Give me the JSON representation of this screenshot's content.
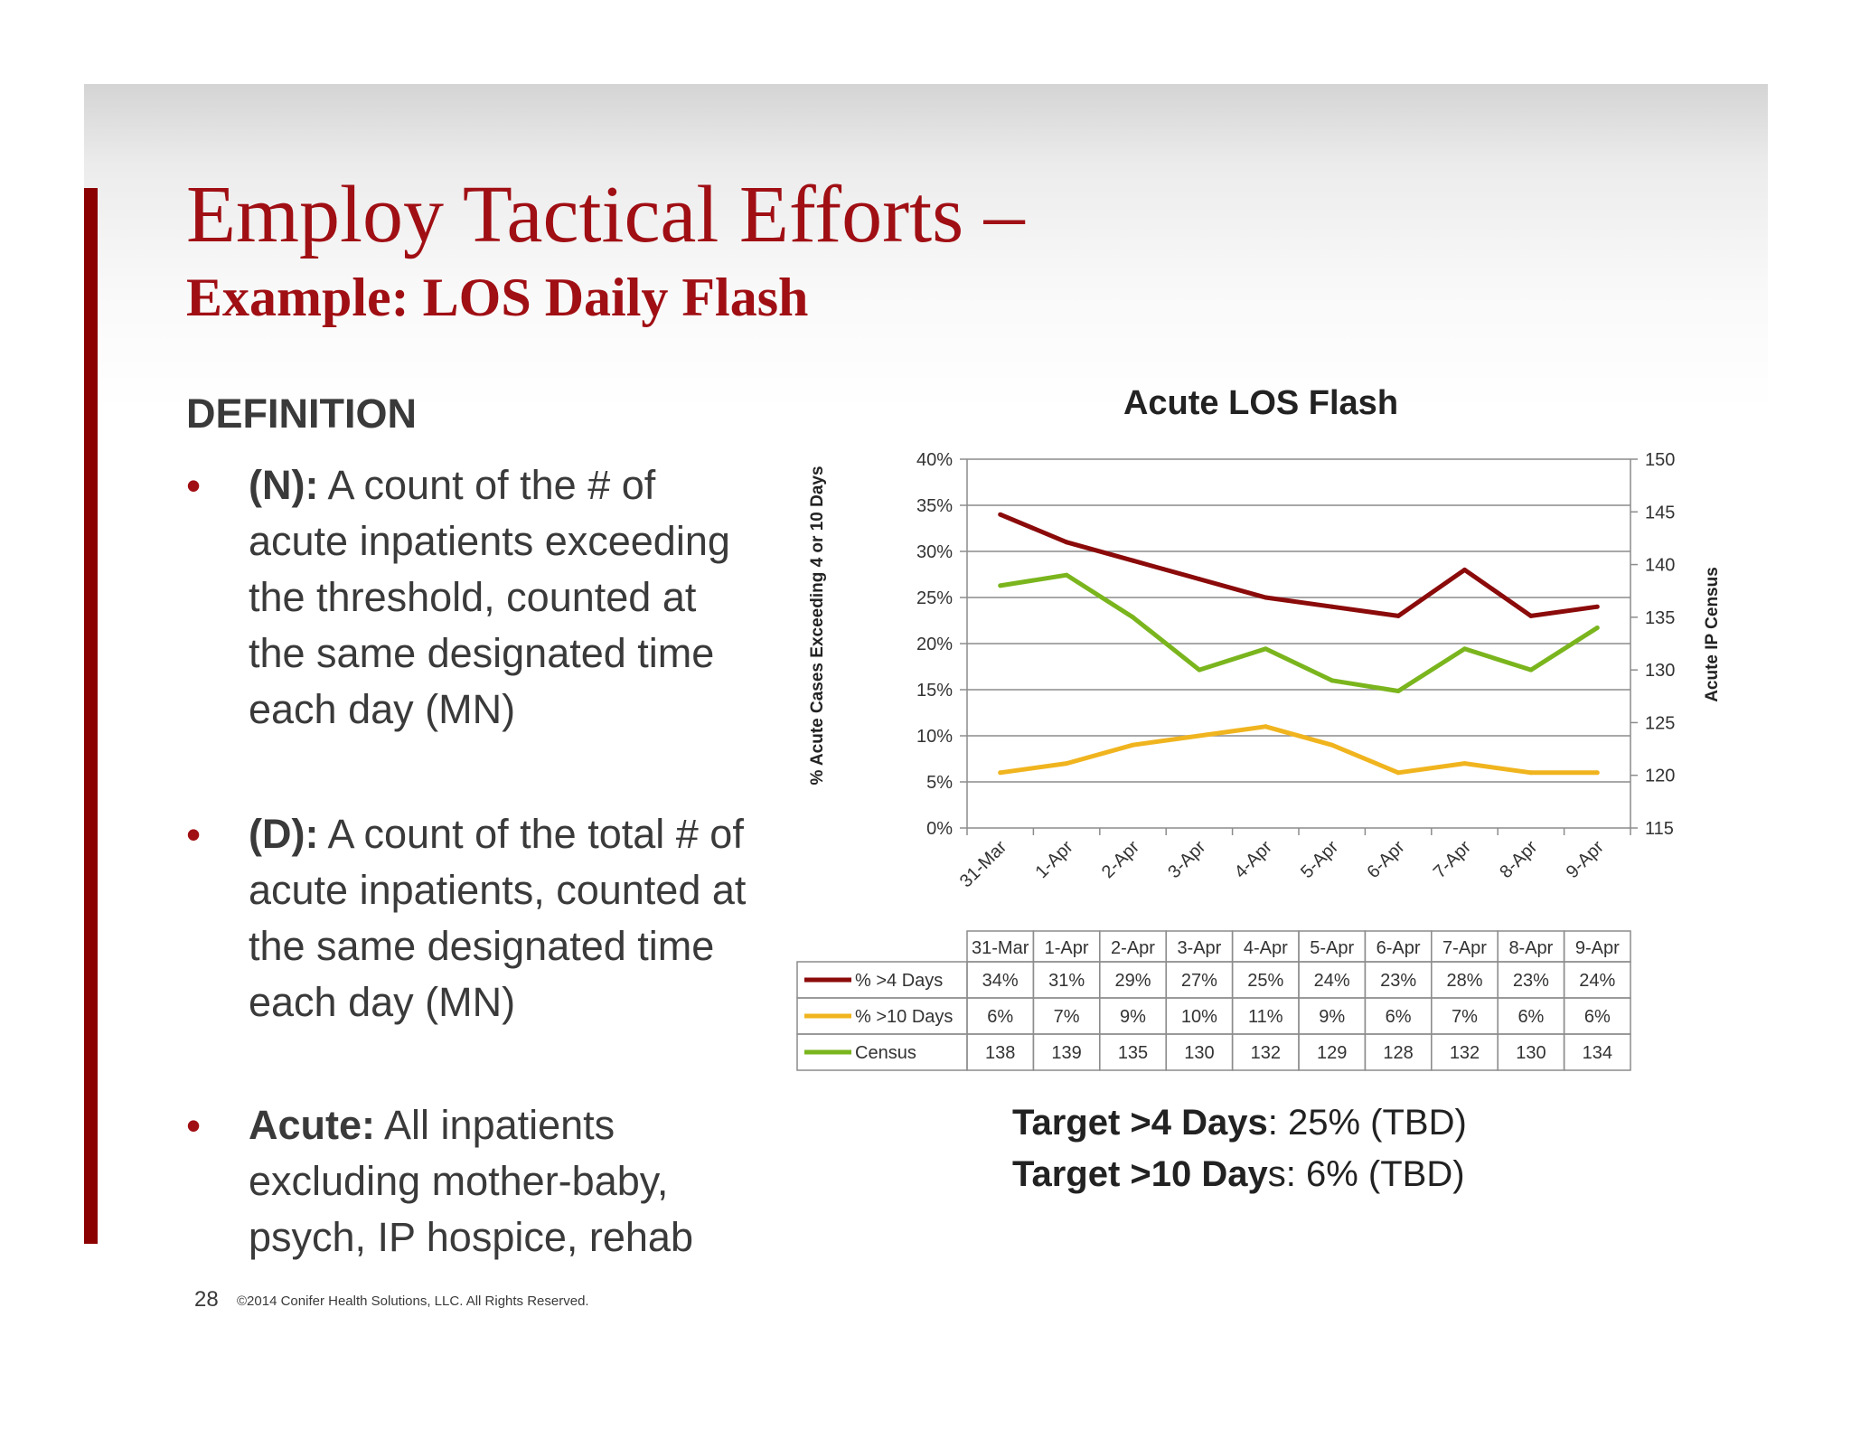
{
  "slide": {
    "title": "Employ Tactical Efforts –",
    "subtitle": "Example: LOS Daily Flash",
    "definition_heading": "DEFINITION",
    "bullets": [
      {
        "marker": "•",
        "term": "(N):",
        "text": " A count of the # of acute inpatients exceeding the threshold, counted at the same designated time each day (MN)"
      },
      {
        "marker": "•",
        "term": "(D):",
        "text": " A count of the total # of acute inpatients, counted at the same designated time each day (MN)"
      },
      {
        "marker": "•",
        "term": "Acute:",
        "text": " All inpatients excluding mother-baby, psych, IP hospice, rehab"
      }
    ],
    "targets": [
      {
        "label": "Target >4 Days",
        "value": ":  25% (TBD)"
      },
      {
        "label": "Target >10 Day",
        "value": "s:  6% (TBD)"
      }
    ],
    "footer": {
      "page_number": "28",
      "copyright": "©2014 Conifer Health Solutions, LLC. All Rights Reserved."
    },
    "colors": {
      "accent": "#8b0000",
      "title": "#a00f14"
    }
  },
  "chart_data": {
    "type": "line",
    "title": "Acute LOS Flash",
    "categories": [
      "31-Mar",
      "1-Apr",
      "2-Apr",
      "3-Apr",
      "4-Apr",
      "5-Apr",
      "6-Apr",
      "7-Apr",
      "8-Apr",
      "9-Apr"
    ],
    "y_left": {
      "label": "% Acute Cases Exceeding 4 or 10 Days",
      "min": 0,
      "max": 40,
      "step": 5,
      "ticks": [
        "0%",
        "5%",
        "10%",
        "15%",
        "20%",
        "25%",
        "30%",
        "35%",
        "40%"
      ]
    },
    "y_right": {
      "label": "Acute IP Census",
      "min": 115,
      "max": 150,
      "step": 5,
      "ticks": [
        "115",
        "120",
        "125",
        "130",
        "135",
        "140",
        "145",
        "150"
      ]
    },
    "grid": true,
    "legend_placement": "data-table",
    "series": [
      {
        "name": "% >4 Days",
        "axis": "left",
        "color": "#8b0a0a",
        "values": [
          34,
          31,
          29,
          27,
          25,
          24,
          23,
          28,
          23,
          24
        ],
        "labels": [
          "34%",
          "31%",
          "29%",
          "27%",
          "25%",
          "24%",
          "23%",
          "28%",
          "23%",
          "24%"
        ]
      },
      {
        "name": "% >10 Days",
        "axis": "left",
        "color": "#f0b41e",
        "values": [
          6,
          7,
          9,
          10,
          11,
          9,
          6,
          7,
          6,
          6
        ],
        "labels": [
          "6%",
          "7%",
          "9%",
          "10%",
          "11%",
          "9%",
          "6%",
          "7%",
          "6%",
          "6%"
        ]
      },
      {
        "name": "Census",
        "axis": "right",
        "color": "#7ab51d",
        "values": [
          138,
          139,
          135,
          130,
          132,
          129,
          128,
          132,
          130,
          134
        ],
        "labels": [
          "138",
          "139",
          "135",
          "130",
          "132",
          "129",
          "128",
          "132",
          "130",
          "134"
        ]
      }
    ]
  }
}
